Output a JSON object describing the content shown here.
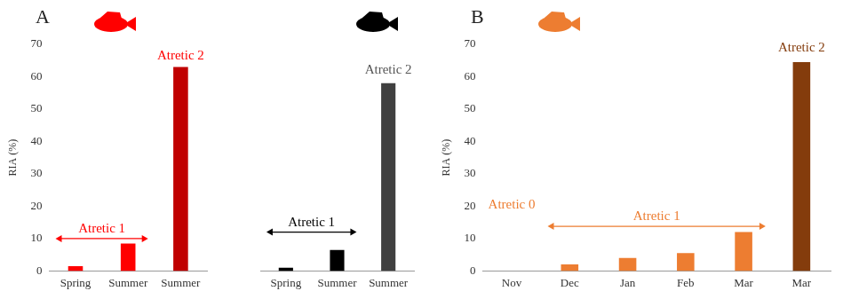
{
  "chart_data": [
    {
      "type": "bar",
      "title": "A",
      "y_label": "RIA (%)",
      "categories": [
        "Spring",
        "Summer",
        "Summer"
      ],
      "values": [
        1.5,
        8.5,
        63
      ],
      "colors": [
        "#ff0000",
        "#ff0000",
        "#c00000"
      ],
      "ylim": [
        0,
        70
      ],
      "yticks": [
        0,
        10,
        20,
        30,
        40,
        50,
        60,
        70
      ],
      "grid": false,
      "annotations": [
        {
          "text": "Atretic 1",
          "x": [
            0,
            1
          ],
          "y": 10,
          "color": "#ff0000"
        },
        {
          "text": "Atretic 2",
          "x": 2,
          "y": 64.5,
          "color": "#ff0000"
        }
      ]
    },
    {
      "type": "bar",
      "categories": [
        "Spring",
        "Summer",
        "Summer"
      ],
      "values": [
        1,
        6.5,
        58
      ],
      "colors": [
        "#000000",
        "#000000",
        "#404040"
      ],
      "ylim": [
        0,
        70
      ],
      "yticks": [
        0,
        10,
        20,
        30,
        40,
        50,
        60,
        70
      ],
      "grid": false,
      "tick_labels": "x",
      "annotations": [
        {
          "text": "Atretic 1",
          "x": [
            0,
            1
          ],
          "y": 12,
          "color": "#000000"
        },
        {
          "text": "Atretic 2",
          "x": 2,
          "y": 60,
          "color": "#555555"
        }
      ]
    },
    {
      "type": "bar",
      "title": "B",
      "y_label": "RIA (%)",
      "categories": [
        "Nov",
        "Dec",
        "Jan",
        "Feb",
        "Mar",
        "Mar"
      ],
      "values": [
        0,
        2,
        4,
        5.5,
        12,
        64.5
      ],
      "colors": [
        "#ed7d31",
        "#ed7d31",
        "#ed7d31",
        "#ed7d31",
        "#ed7d31",
        "#843c0c"
      ],
      "ylim": [
        0,
        70
      ],
      "yticks": [
        0,
        10,
        20,
        30,
        40,
        50,
        60,
        70
      ],
      "grid": false,
      "annotations": [
        {
          "text": "Atretic 0",
          "x": 0,
          "y": 18.6,
          "color": "#ed7d31"
        },
        {
          "text": "Atretic 1",
          "x": [
            1,
            4
          ],
          "y": 13.8,
          "color": "#ed7d31"
        },
        {
          "text": "Atretic 2",
          "x": 5,
          "y": 67,
          "color": "#843c0c"
        }
      ]
    }
  ]
}
